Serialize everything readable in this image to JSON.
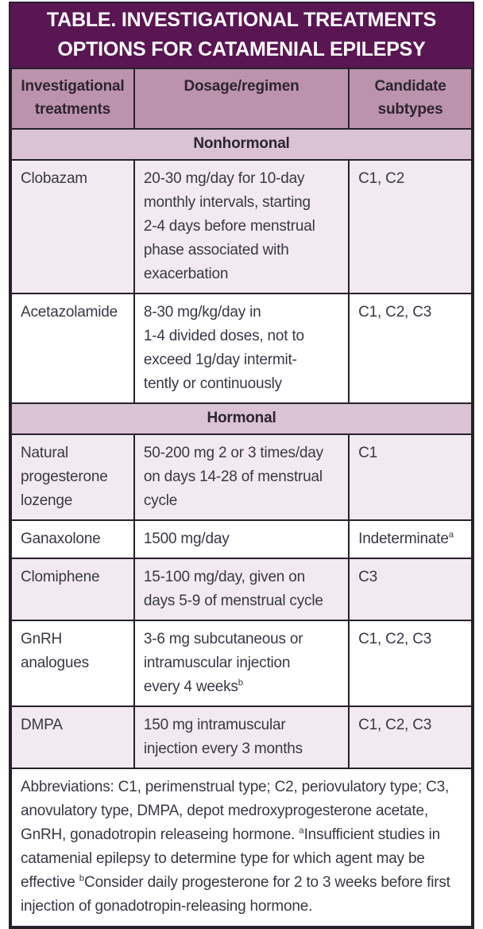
{
  "title": {
    "line1": "TABLE. INVESTIGATIONAL TREATMENTS",
    "line2": "OPTIONS FOR CATAMENIAL EPILEPSY"
  },
  "columns": [
    {
      "label": "Investigational treatments"
    },
    {
      "label": "Dosage/regimen"
    },
    {
      "label": "Candidate subtypes"
    }
  ],
  "sections": [
    {
      "header": "Nonhormonal",
      "rows": [
        {
          "treatment": "Clobazam",
          "dosage": "20-30 mg/day for 10-day\nmonthly intervals, starting\n2-4 days before menstrual\nphase associated with\nexacerbation",
          "subtypes": "C1, C2"
        },
        {
          "treatment": "Acetazolamide",
          "dosage": "8-30 mg/kg/day in\n1-4 divided doses, not to\nexceed 1g/day intermit-\ntently or continuously",
          "subtypes": "C1, C2, C3"
        }
      ]
    },
    {
      "header": "Hormonal",
      "rows": [
        {
          "treatment": "Natural\nprogesterone\nlozenge",
          "dosage": "50-200 mg 2 or 3 times/day\non days 14-28 of menstrual\ncycle",
          "subtypes": "C1"
        },
        {
          "treatment": "Ganaxolone",
          "dosage": "1500 mg/day",
          "subtypes": "Indeterminate",
          "subtypes_sup": "a"
        },
        {
          "treatment": "Clomiphene",
          "dosage": "15-100 mg/day, given on\ndays 5-9 of menstrual cycle",
          "subtypes": "C3"
        },
        {
          "treatment": "GnRH\nanalogues",
          "dosage": "3-6 mg subcutaneous or\nintramuscular injection\nevery 4 weeks",
          "dosage_sup": "b",
          "subtypes": "C1, C2, C3"
        },
        {
          "treatment": "DMPA",
          "dosage": "150 mg intramuscular\ninjection every 3 months",
          "subtypes": "C1, C2, C3"
        }
      ]
    }
  ],
  "footnote": {
    "segments": [
      {
        "text": "Abbreviations: C1, perimenstrual type; C2, periovulatory type; C3,\nanovulatory type, DMPA, depot medroxyprogesterone acetate,\nGnRH, gonadotropin releaseing hormone. "
      },
      {
        "sup": "a"
      },
      {
        "text": "Insufficient studies in\ncatamenial epilepsy to determine type for which agent may be\neffective "
      },
      {
        "sup": "b"
      },
      {
        "text": "Consider daily progesterone for 2 to 3 weeks before first\ninjection of gonadotropin-releasing hormone."
      }
    ]
  },
  "colors": {
    "title_bg": "#5a1553",
    "title_text": "#ffffff",
    "header_bg": "#bb93ad",
    "section_bg": "#d9c3d4",
    "row_pink_bg": "#f2eaf0",
    "row_white_bg": "#ffffff",
    "border": "#27202b",
    "body_text": "#383845",
    "heading_text": "#2f2430"
  }
}
